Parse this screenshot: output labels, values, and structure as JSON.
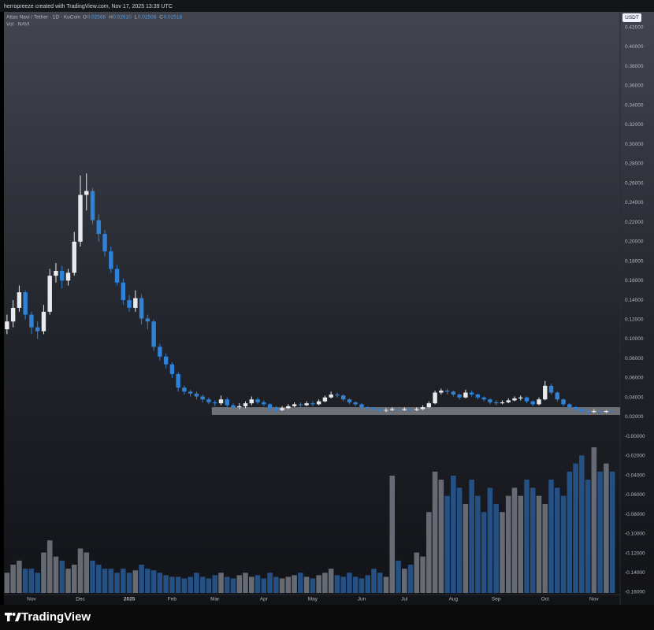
{
  "header": "herropreeze created with TradingView.com, Nov 17, 2025 13:39 UTC",
  "branding": "TradingView",
  "chart_data": {
    "type": "candlestick",
    "currency": "USDT",
    "legend": {
      "symbol": "Attas Navi / Tether · 1D · KuCoin",
      "ohlc": [
        {
          "label": "O",
          "value": "0.02566"
        },
        {
          "label": "H",
          "value": "0.02610"
        },
        {
          "label": "L",
          "value": "0.02508"
        },
        {
          "label": "C",
          "value": "0.02518"
        }
      ],
      "volume": "Vol · NAVI"
    },
    "up_color": "#e8eaee",
    "down_color": "#2f82d6",
    "volume_up_color": "#6f737d",
    "volume_down_color": "#27578f",
    "zone_color": "#8a8d93",
    "highlight_zone": {
      "low": 0.022,
      "high": 0.03
    },
    "grid": false,
    "categories": [
      null,
      null,
      null,
      null,
      "Nov",
      null,
      null,
      null,
      null,
      null,
      null,
      null,
      "Dec",
      null,
      null,
      null,
      null,
      null,
      null,
      null,
      "2025",
      null,
      null,
      null,
      null,
      null,
      null,
      "Feb",
      null,
      null,
      null,
      null,
      null,
      null,
      "Mar",
      null,
      null,
      null,
      null,
      null,
      null,
      null,
      "Apr",
      null,
      null,
      null,
      null,
      null,
      null,
      null,
      "May",
      null,
      null,
      null,
      null,
      null,
      null,
      null,
      "Jun",
      null,
      null,
      null,
      null,
      null,
      null,
      "Jul",
      null,
      null,
      null,
      null,
      null,
      null,
      null,
      "Aug",
      null,
      null,
      null,
      null,
      null,
      null,
      "Sep",
      null,
      null,
      null,
      null,
      null,
      null,
      null,
      "Oct",
      null,
      null,
      null,
      null,
      null,
      null,
      null,
      "Nov",
      null,
      null,
      null
    ],
    "open": [
      0.11,
      0.118,
      0.132,
      0.148,
      0.125,
      0.112,
      0.108,
      0.128,
      0.165,
      0.17,
      0.16,
      0.168,
      0.2,
      0.248,
      0.252,
      0.222,
      0.208,
      0.19,
      0.172,
      0.158,
      0.14,
      0.132,
      0.142,
      0.121,
      0.118,
      0.092,
      0.082,
      0.074,
      0.064,
      0.05,
      0.046,
      0.044,
      0.041,
      0.038,
      0.035,
      0.034,
      0.038,
      0.032,
      0.03,
      0.031,
      0.034,
      0.038,
      0.035,
      0.033,
      0.029,
      0.027,
      0.029,
      0.031,
      0.033,
      0.032,
      0.034,
      0.033,
      0.036,
      0.04,
      0.043,
      0.042,
      0.038,
      0.035,
      0.033,
      0.03,
      0.029,
      0.028,
      0.027,
      0.027,
      0.028,
      0.027,
      0.028,
      0.027,
      0.028,
      0.03,
      0.034,
      0.045,
      0.047,
      0.046,
      0.043,
      0.04,
      0.045,
      0.043,
      0.04,
      0.038,
      0.035,
      0.034,
      0.035,
      0.037,
      0.039,
      0.04,
      0.036,
      0.033,
      0.038,
      0.052,
      0.045,
      0.038,
      0.033,
      0.03,
      0.028,
      0.026,
      0.025,
      0.026,
      0.025,
      0.026
    ],
    "high": [
      0.125,
      0.14,
      0.155,
      0.15,
      0.128,
      0.118,
      0.135,
      0.172,
      0.178,
      0.175,
      0.172,
      0.21,
      0.268,
      0.27,
      0.255,
      0.228,
      0.212,
      0.195,
      0.176,
      0.162,
      0.145,
      0.15,
      0.146,
      0.125,
      0.12,
      0.095,
      0.085,
      0.076,
      0.066,
      0.052,
      0.048,
      0.046,
      0.043,
      0.04,
      0.037,
      0.042,
      0.04,
      0.034,
      0.034,
      0.036,
      0.041,
      0.04,
      0.037,
      0.034,
      0.031,
      0.031,
      0.033,
      0.035,
      0.035,
      0.036,
      0.036,
      0.038,
      0.042,
      0.046,
      0.045,
      0.043,
      0.039,
      0.036,
      0.034,
      0.031,
      0.03,
      0.029,
      0.029,
      0.03,
      0.029,
      0.03,
      0.029,
      0.03,
      0.032,
      0.036,
      0.047,
      0.049,
      0.049,
      0.047,
      0.044,
      0.048,
      0.047,
      0.044,
      0.041,
      0.039,
      0.037,
      0.037,
      0.039,
      0.041,
      0.042,
      0.041,
      0.037,
      0.04,
      0.057,
      0.054,
      0.046,
      0.039,
      0.034,
      0.031,
      0.029,
      0.027,
      0.028,
      0.027,
      0.027,
      0.0261
    ],
    "low": [
      0.105,
      0.112,
      0.128,
      0.12,
      0.105,
      0.1,
      0.105,
      0.125,
      0.158,
      0.152,
      0.155,
      0.165,
      0.195,
      0.232,
      0.218,
      0.2,
      0.185,
      0.168,
      0.155,
      0.135,
      0.128,
      0.128,
      0.115,
      0.11,
      0.088,
      0.078,
      0.07,
      0.06,
      0.046,
      0.043,
      0.041,
      0.038,
      0.035,
      0.033,
      0.031,
      0.032,
      0.03,
      0.028,
      0.028,
      0.029,
      0.032,
      0.033,
      0.031,
      0.026,
      0.024,
      0.026,
      0.028,
      0.03,
      0.03,
      0.031,
      0.031,
      0.032,
      0.035,
      0.039,
      0.04,
      0.036,
      0.033,
      0.031,
      0.028,
      0.027,
      0.026,
      0.025,
      0.025,
      0.026,
      0.025,
      0.026,
      0.025,
      0.026,
      0.027,
      0.029,
      0.033,
      0.043,
      0.043,
      0.041,
      0.038,
      0.039,
      0.041,
      0.038,
      0.036,
      0.033,
      0.032,
      0.033,
      0.034,
      0.036,
      0.037,
      0.034,
      0.031,
      0.032,
      0.037,
      0.043,
      0.036,
      0.031,
      0.028,
      0.026,
      0.024,
      0.023,
      0.024,
      0.023,
      0.024,
      0.0251
    ],
    "close": [
      0.118,
      0.132,
      0.148,
      0.125,
      0.112,
      0.108,
      0.128,
      0.165,
      0.17,
      0.16,
      0.168,
      0.2,
      0.248,
      0.252,
      0.222,
      0.208,
      0.19,
      0.172,
      0.158,
      0.14,
      0.132,
      0.142,
      0.121,
      0.118,
      0.092,
      0.082,
      0.074,
      0.064,
      0.05,
      0.046,
      0.044,
      0.041,
      0.038,
      0.035,
      0.034,
      0.038,
      0.032,
      0.03,
      0.031,
      0.034,
      0.038,
      0.035,
      0.033,
      0.029,
      0.027,
      0.029,
      0.031,
      0.033,
      0.032,
      0.034,
      0.033,
      0.036,
      0.04,
      0.043,
      0.042,
      0.038,
      0.035,
      0.033,
      0.03,
      0.029,
      0.028,
      0.027,
      0.027,
      0.028,
      0.027,
      0.028,
      0.027,
      0.028,
      0.03,
      0.034,
      0.045,
      0.047,
      0.046,
      0.043,
      0.04,
      0.045,
      0.043,
      0.04,
      0.038,
      0.035,
      0.034,
      0.035,
      0.037,
      0.039,
      0.04,
      0.036,
      0.033,
      0.038,
      0.052,
      0.045,
      0.038,
      0.033,
      0.03,
      0.028,
      0.026,
      0.025,
      0.026,
      0.025,
      0.026,
      0.0252
    ],
    "volume": [
      25,
      35,
      40,
      30,
      30,
      25,
      50,
      65,
      45,
      40,
      30,
      35,
      55,
      50,
      40,
      35,
      30,
      30,
      25,
      30,
      25,
      28,
      35,
      30,
      28,
      25,
      22,
      20,
      20,
      18,
      20,
      25,
      20,
      18,
      22,
      25,
      20,
      18,
      22,
      25,
      20,
      22,
      18,
      25,
      20,
      18,
      20,
      22,
      25,
      20,
      18,
      22,
      25,
      30,
      22,
      20,
      25,
      20,
      18,
      22,
      30,
      25,
      20,
      145,
      40,
      30,
      35,
      50,
      45,
      100,
      150,
      140,
      120,
      145,
      130,
      110,
      140,
      120,
      100,
      130,
      110,
      100,
      120,
      130,
      120,
      140,
      130,
      120,
      110,
      140,
      130,
      120,
      150,
      160,
      170,
      140,
      180,
      150,
      160,
      150
    ],
    "ylim": [
      -0.1705,
      0.436
    ],
    "yticks": [
      {
        "value": 0.42,
        "label": "0.42000"
      },
      {
        "value": 0.4,
        "label": "0.40000"
      },
      {
        "value": 0.38,
        "label": "0.38000"
      },
      {
        "value": 0.36,
        "label": "0.36000"
      },
      {
        "value": 0.34,
        "label": "0.34000"
      },
      {
        "value": 0.32,
        "label": "0.32000"
      },
      {
        "value": 0.3,
        "label": "0.30000"
      },
      {
        "value": 0.28,
        "label": "0.28000"
      },
      {
        "value": 0.26,
        "label": "0.26000"
      },
      {
        "value": 0.24,
        "label": "0.24000"
      },
      {
        "value": 0.22,
        "label": "0.22000"
      },
      {
        "value": 0.2,
        "label": "0.20000"
      },
      {
        "value": 0.18,
        "label": "0.18000"
      },
      {
        "value": 0.16,
        "label": "0.16000"
      },
      {
        "value": 0.14,
        "label": "0.14000"
      },
      {
        "value": 0.12,
        "label": "0.12000"
      },
      {
        "value": 0.1,
        "label": "0.10000"
      },
      {
        "value": 0.08,
        "label": "0.08000"
      },
      {
        "value": 0.06,
        "label": "0.06000"
      },
      {
        "value": 0.04,
        "label": "0.04000"
      },
      {
        "value": 0.02,
        "label": "0.02000"
      },
      {
        "value": 0,
        "label": "-0.00000"
      },
      {
        "value": -0.02,
        "label": "-0.02000"
      },
      {
        "value": -0.04,
        "label": "-0.04000"
      },
      {
        "value": -0.06,
        "label": "-0.06000"
      },
      {
        "value": -0.08,
        "label": "-0.08000"
      },
      {
        "value": -0.1,
        "label": "-0.10000"
      },
      {
        "value": -0.12,
        "label": "-0.12000"
      },
      {
        "value": -0.14,
        "label": "-0.14000"
      },
      {
        "value": -0.16,
        "label": "-0.16000"
      }
    ]
  }
}
